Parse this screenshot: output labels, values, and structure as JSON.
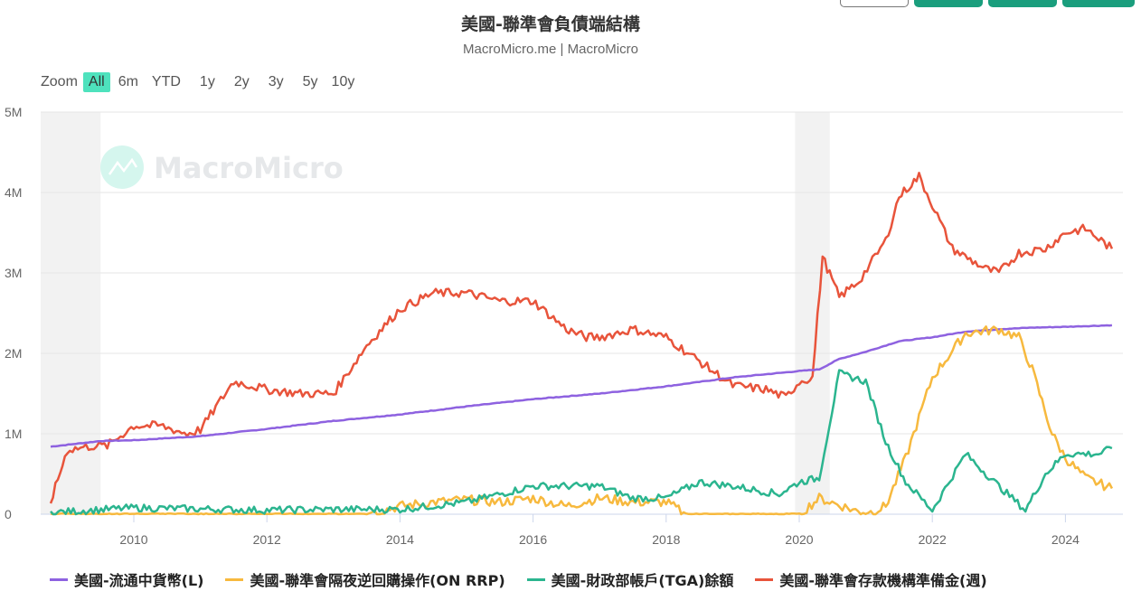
{
  "header": {
    "title": "美國-聯準會負債端結構",
    "subtitle": "MacroMicro.me | MacroMicro"
  },
  "zoom": {
    "label": "Zoom",
    "options": [
      "All",
      "6m",
      "YTD",
      "1y",
      "2y",
      "3y",
      "5y",
      "10y"
    ],
    "active": "All"
  },
  "watermark": {
    "text": "MacroMicro",
    "icon": "chart-line-logo-icon"
  },
  "colors": {
    "currency": "#8e62e0",
    "onrrp": "#f7b93e",
    "tga": "#2bb58f",
    "reserves": "#e8543b",
    "accent": "#4ee2bd",
    "button_green": "#1a9e7d"
  },
  "legend": [
    {
      "label": "美國-流通中貨幣(L)",
      "color": "#8e62e0"
    },
    {
      "label": "美國-聯準會隔夜逆回購操作(ON RRP)",
      "color": "#f7b93e"
    },
    {
      "label": "美國-財政部帳戶(TGA)餘額",
      "color": "#2bb58f"
    },
    {
      "label": "美國-聯準會存款機構準備金(週)",
      "color": "#e8543b"
    }
  ],
  "chart_data": {
    "type": "line",
    "title": "美國-聯準會負債端結構",
    "subtitle": "MacroMicro.me | MacroMicro",
    "xlabel": "",
    "ylabel": "",
    "ylim": [
      0,
      5000000
    ],
    "y_ticks": [
      "0",
      "1M",
      "2M",
      "3M",
      "4M",
      "5M"
    ],
    "x_ticks": [
      "2010",
      "2012",
      "2014",
      "2016",
      "2018",
      "2020",
      "2022",
      "2024"
    ],
    "grid": true,
    "legend_position": "bottom",
    "recession_bands": [
      [
        2008.75,
        2009.5
      ],
      [
        2020.1,
        2020.35
      ]
    ],
    "series": [
      {
        "name": "美國-流通中貨幣(L)",
        "x": [
          2008.75,
          2009.5,
          2010.0,
          2011.0,
          2012.0,
          2013.0,
          2014.0,
          2015.0,
          2016.0,
          2017.0,
          2018.0,
          2019.0,
          2020.0,
          2020.3,
          2020.6,
          2021.0,
          2021.5,
          2022.0,
          2022.5,
          2023.0,
          2023.5,
          2024.0,
          2024.7
        ],
        "values": [
          840000,
          910000,
          920000,
          970000,
          1060000,
          1160000,
          1240000,
          1340000,
          1430000,
          1500000,
          1590000,
          1700000,
          1780000,
          1800000,
          1930000,
          2020000,
          2150000,
          2200000,
          2270000,
          2300000,
          2320000,
          2330000,
          2350000
        ]
      },
      {
        "name": "美國-聯準會隔夜逆回購操作(ON RRP)",
        "x": [
          2008.75,
          2013.5,
          2014.0,
          2014.5,
          2015.0,
          2015.5,
          2016.0,
          2016.5,
          2017.0,
          2017.5,
          2018.0,
          2018.3,
          2019.0,
          2020.0,
          2020.3,
          2021.0,
          2021.3,
          2021.6,
          2022.0,
          2022.5,
          2023.0,
          2023.3,
          2023.5,
          2023.8,
          2024.0,
          2024.3,
          2024.7
        ],
        "values": [
          0,
          0,
          100000,
          150000,
          180000,
          150000,
          200000,
          100000,
          200000,
          150000,
          150000,
          0,
          0,
          0,
          200000,
          0,
          100000,
          700000,
          1700000,
          2250000,
          2300000,
          2200000,
          1800000,
          1000000,
          700000,
          450000,
          320000
        ]
      },
      {
        "name": "美國-財政部帳戶(TGA)餘額",
        "x": [
          2008.75,
          2010.0,
          2012.0,
          2013.0,
          2014.0,
          2015.0,
          2016.0,
          2016.5,
          2017.0,
          2017.5,
          2018.0,
          2018.5,
          2019.0,
          2019.7,
          2020.0,
          2020.3,
          2020.6,
          2021.0,
          2021.3,
          2021.6,
          2022.0,
          2022.5,
          2023.0,
          2023.4,
          2023.7,
          2024.0,
          2024.5,
          2024.7
        ],
        "values": [
          20000,
          80000,
          50000,
          60000,
          60000,
          150000,
          350000,
          350000,
          350000,
          200000,
          200000,
          400000,
          350000,
          250000,
          400000,
          450000,
          1750000,
          1650000,
          900000,
          400000,
          50000,
          750000,
          350000,
          50000,
          500000,
          750000,
          750000,
          820000
        ]
      },
      {
        "name": "美國-聯準會存款機構準備金(週)",
        "x": [
          2008.75,
          2009.0,
          2009.4,
          2009.6,
          2010.0,
          2010.4,
          2010.8,
          2011.0,
          2011.5,
          2012.0,
          2012.5,
          2013.0,
          2013.5,
          2014.0,
          2014.5,
          2015.0,
          2015.5,
          2016.0,
          2016.5,
          2016.8,
          2017.0,
          2017.5,
          2018.0,
          2018.5,
          2019.0,
          2019.5,
          2019.8,
          2020.0,
          2020.2,
          2020.35,
          2020.6,
          2020.9,
          2021.3,
          2021.5,
          2021.8,
          2022.0,
          2022.3,
          2022.8,
          2023.0,
          2023.3,
          2023.7,
          2024.0,
          2024.3,
          2024.7
        ],
        "values": [
          150000,
          800000,
          850000,
          850000,
          1100000,
          1100000,
          1000000,
          1050000,
          1650000,
          1550000,
          1500000,
          1500000,
          2100000,
          2550000,
          2750000,
          2750000,
          2650000,
          2650000,
          2300000,
          2200000,
          2200000,
          2300000,
          2200000,
          1900000,
          1600000,
          1550000,
          1450000,
          1650000,
          1700000,
          3200000,
          2700000,
          2900000,
          3400000,
          3950000,
          4200000,
          3850000,
          3300000,
          3050000,
          3000000,
          3250000,
          3300000,
          3500000,
          3550000,
          3300000
        ]
      }
    ]
  }
}
